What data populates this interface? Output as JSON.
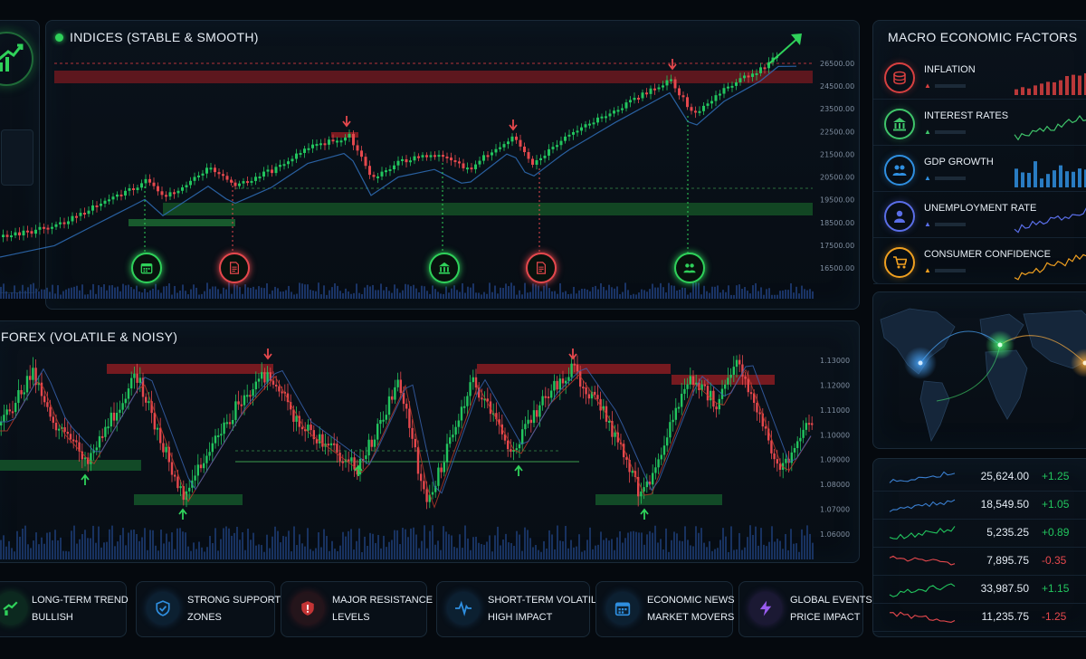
{
  "indices": {
    "title": "INDICES (STABLE & SMOOTH)",
    "y_labels": [
      "26500.00",
      "24500.00",
      "23500.00",
      "22500.00",
      "21500.00",
      "20500.00",
      "19500.00",
      "18500.00",
      "17500.00",
      "16500.00"
    ]
  },
  "forex": {
    "title": "FOREX (VOLATILE & NOISY)",
    "y_labels": [
      "1.13000",
      "1.12000",
      "1.11000",
      "1.10000",
      "1.09000",
      "1.08000",
      "1.07000",
      "1.06000"
    ]
  },
  "macro": {
    "title": "MACRO ECONOMIC FACTORS",
    "items": [
      {
        "label": "INFLATION",
        "icon": "coins-icon",
        "color": "#d84040"
      },
      {
        "label": "INTEREST RATES",
        "icon": "bank-icon",
        "color": "#3fc46a"
      },
      {
        "label": "GDP GROWTH",
        "icon": "people-icon",
        "color": "#2f8fe0"
      },
      {
        "label": "UNEMPLOYMENT RATE",
        "icon": "person-icon",
        "color": "#5a6ee8"
      },
      {
        "label": "CONSUMER CONFIDENCE",
        "icon": "cart-icon",
        "color": "#f0a020"
      }
    ]
  },
  "tickers": [
    {
      "value": "25,624.00",
      "change": "+1.25",
      "positive": true
    },
    {
      "value": "18,549.50",
      "change": "+1.05",
      "positive": true
    },
    {
      "value": "5,235.25",
      "change": "+0.89",
      "positive": true
    },
    {
      "value": "7,895.75",
      "change": "-0.35",
      "positive": false
    },
    {
      "value": "33,987.50",
      "change": "+1.15",
      "positive": true
    },
    {
      "value": "11,235.75",
      "change": "-1.25",
      "positive": false
    }
  ],
  "legend": [
    {
      "line1": "LONG-TERM TREND",
      "line2": "BULLISH",
      "icon": "trend-up-icon",
      "color": "#2fd15a"
    },
    {
      "line1": "STRONG SUPPORT",
      "line2": "ZONES",
      "icon": "shield-check-icon",
      "color": "#2f8fe0"
    },
    {
      "line1": "MAJOR RESISTANCE",
      "line2": "LEVELS",
      "icon": "shield-alert-icon",
      "color": "#e03a3a"
    },
    {
      "line1": "SHORT-TERM VOLATILITY",
      "line2": "HIGH IMPACT",
      "icon": "pulse-icon",
      "color": "#2f8fe0"
    },
    {
      "line1": "ECONOMIC NEWS",
      "line2": "MARKET MOVERS",
      "icon": "calendar-icon",
      "color": "#2f8fe0"
    },
    {
      "line1": "GLOBAL EVENTS",
      "line2": "PRICE IMPACT",
      "icon": "lightning-icon",
      "color": "#9a5cf0"
    }
  ],
  "colors": {
    "bull": "#22c55e",
    "bear": "#e5484d",
    "accent": "#2f8fe0"
  }
}
